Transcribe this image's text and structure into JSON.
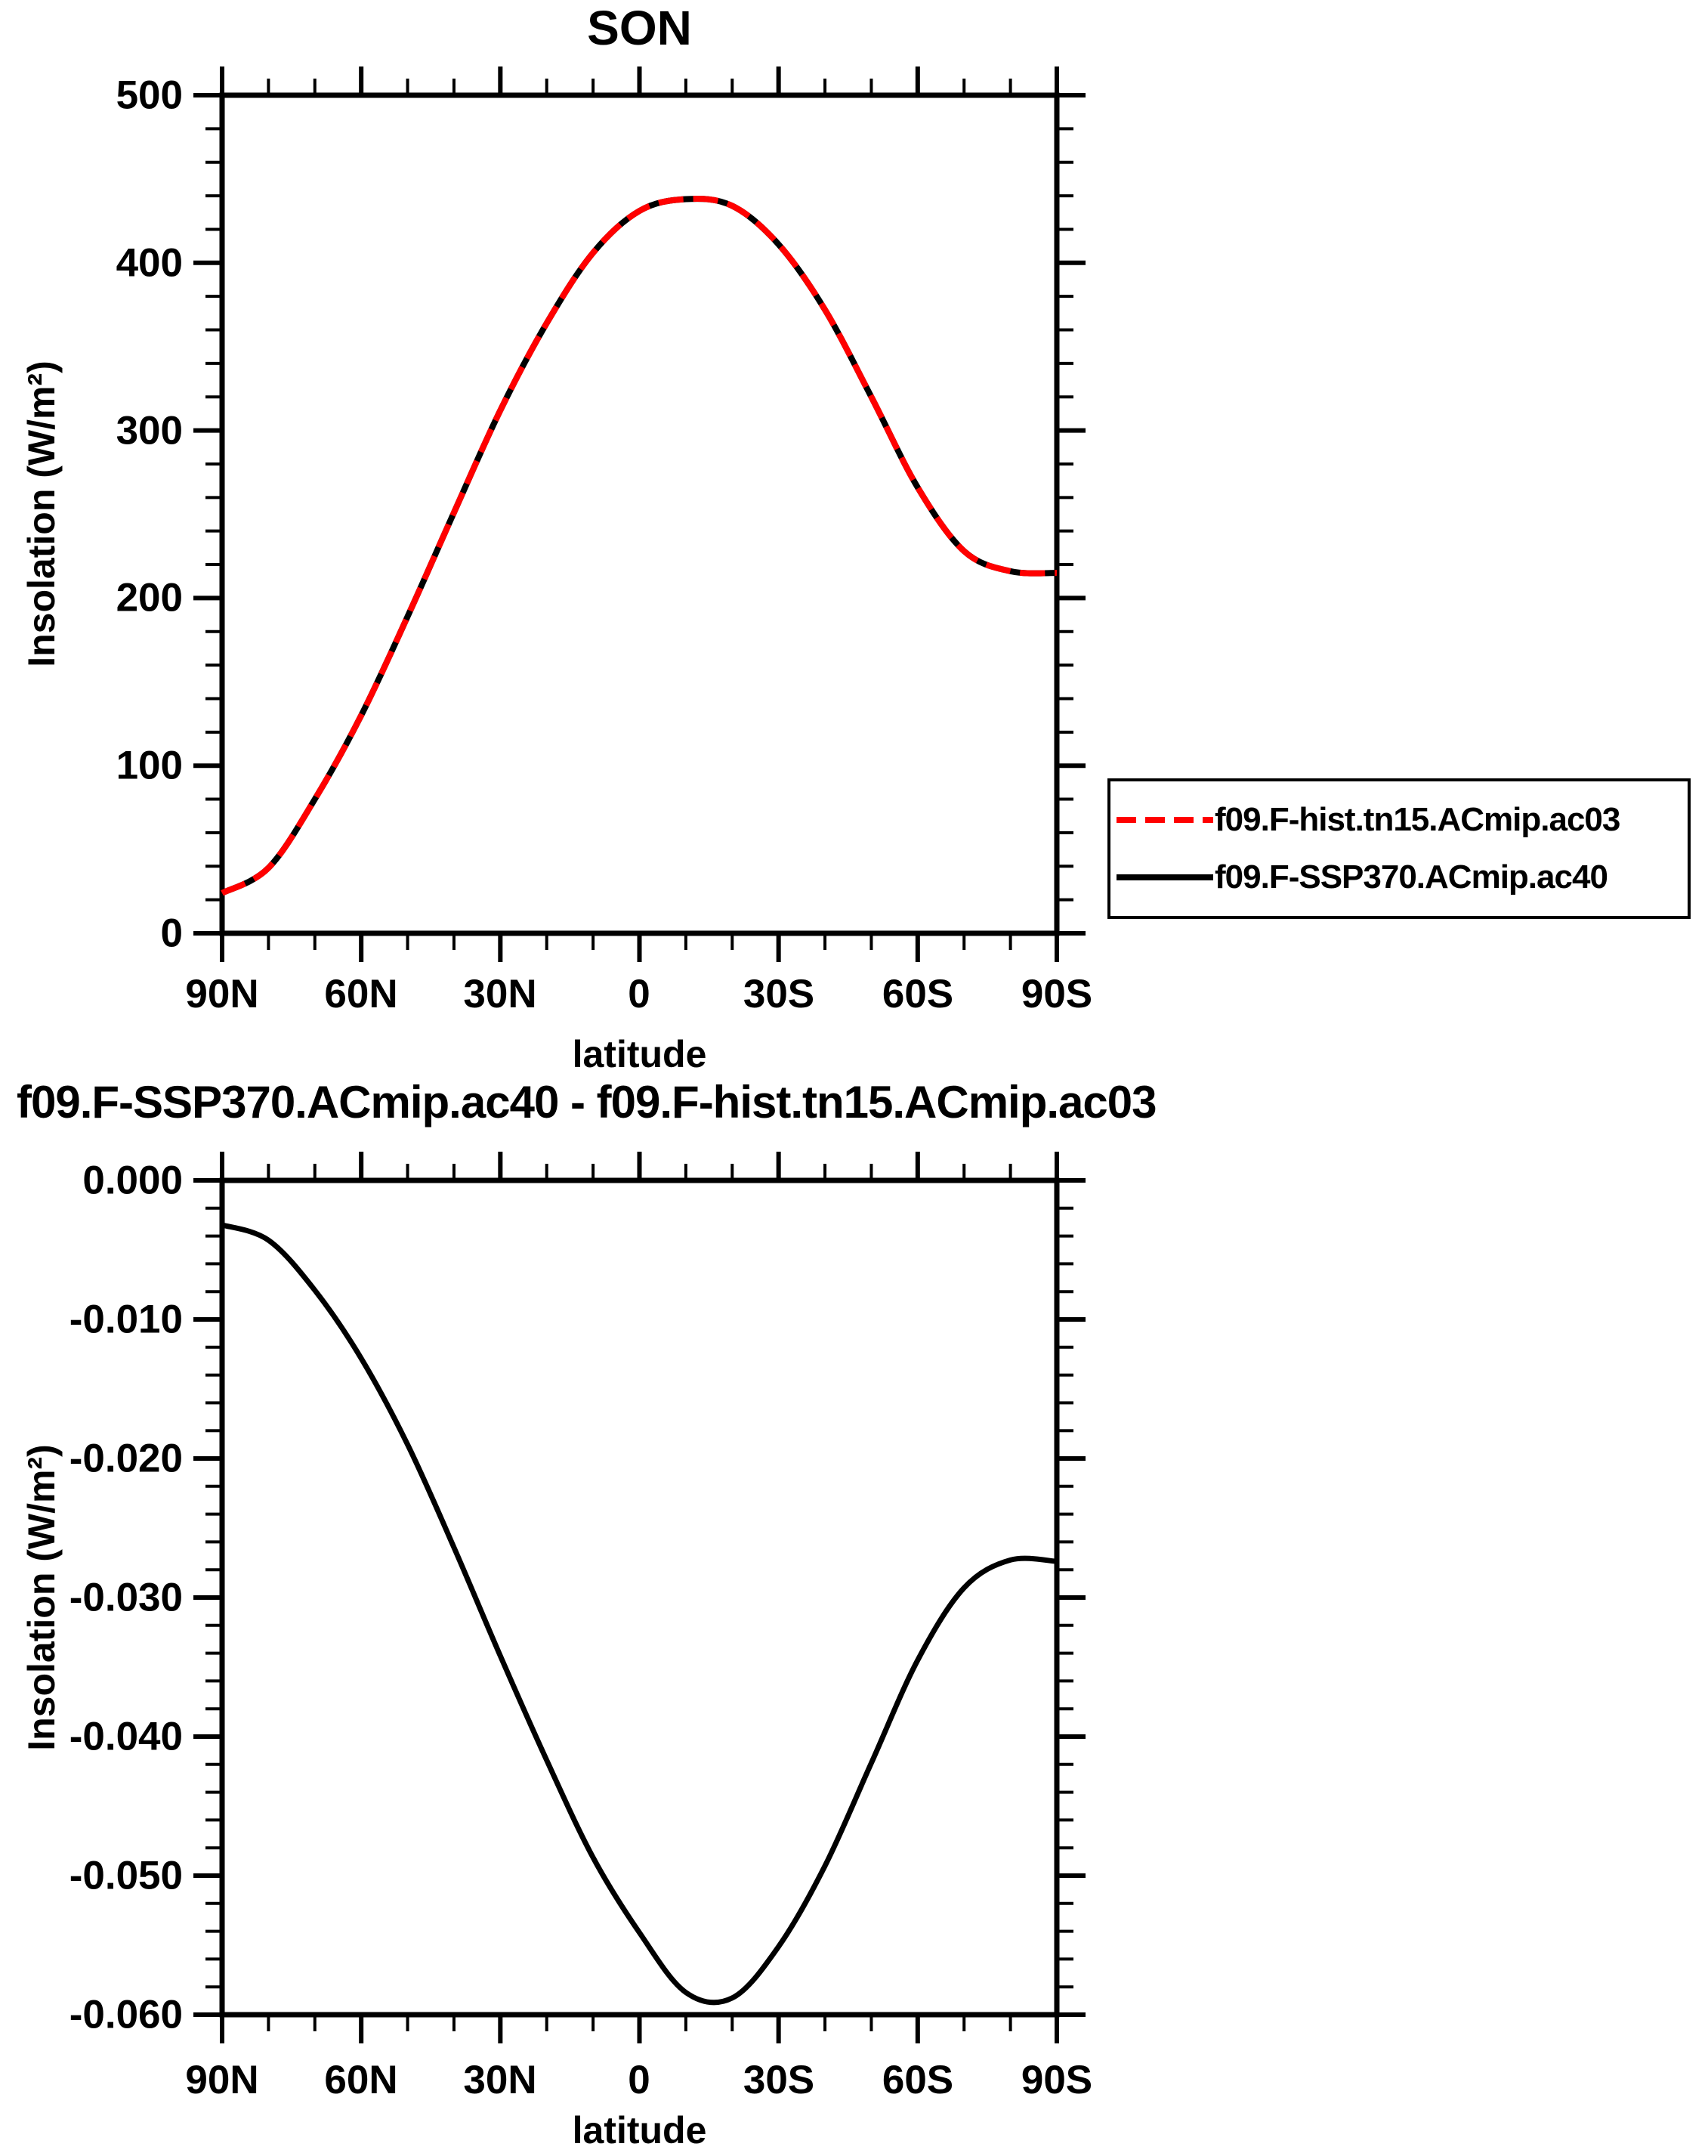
{
  "page": {
    "background": "#ffffff",
    "accent_red": "#ff0000",
    "ink": "#000000"
  },
  "chart_data": [
    {
      "type": "line",
      "title": "SON",
      "xlabel": "latitude",
      "ylabel": "Insolation (W/m²)",
      "x_axis": {
        "tick_labels": [
          "90N",
          "60N",
          "30N",
          "0",
          "30S",
          "60S",
          "90S"
        ],
        "major_values": [
          90,
          60,
          30,
          0,
          -30,
          -60,
          -90
        ],
        "minor_step": 10,
        "range": [
          90,
          -90
        ]
      },
      "y_axis": {
        "tick_labels": [
          "500",
          "400",
          "300",
          "200",
          "100",
          "0"
        ],
        "major_values": [
          500,
          400,
          300,
          200,
          100,
          0
        ],
        "minor_step": 20,
        "range": [
          0,
          500
        ]
      },
      "x": [
        90,
        80,
        70,
        60,
        50,
        40,
        30,
        20,
        10,
        0,
        -10,
        -20,
        -30,
        -40,
        -50,
        -60,
        -70,
        -80,
        -90
      ],
      "series": [
        {
          "name": "f09.F-hist.tn15.ACmip.ac03",
          "color": "#ff0000",
          "line_style": "dashed",
          "line_width": 8,
          "values": [
            24,
            39,
            80,
            130,
            189,
            251,
            312,
            364,
            406,
            431,
            438,
            434,
            411,
            372,
            320,
            266,
            228,
            216,
            215
          ]
        },
        {
          "name": "f09.F-SSP370.ACmip.ac40",
          "color": "#000000",
          "line_style": "solid",
          "line_width": 8,
          "values": [
            24,
            39,
            80,
            130,
            189,
            251,
            312,
            364,
            406,
            431,
            438,
            434,
            411,
            372,
            320,
            266,
            228,
            216,
            215
          ]
        }
      ],
      "legend": {
        "position": "right-below-plot",
        "entries": [
          {
            "label": "f09.F-hist.tn15.ACmip.ac03",
            "color": "#ff0000",
            "line_style": "dashed"
          },
          {
            "label": "f09.F-SSP370.ACmip.ac40",
            "color": "#000000",
            "line_style": "solid"
          }
        ]
      }
    },
    {
      "type": "line",
      "title": "f09.F-SSP370.ACmip.ac40 - f09.F-hist.tn15.ACmip.ac03",
      "xlabel": "latitude",
      "ylabel": "Insolation (W/m²)",
      "x_axis": {
        "tick_labels": [
          "90N",
          "60N",
          "30N",
          "0",
          "30S",
          "60S",
          "90S"
        ],
        "major_values": [
          90,
          60,
          30,
          0,
          -30,
          -60,
          -90
        ],
        "minor_step": 10,
        "range": [
          90,
          -90
        ]
      },
      "y_axis": {
        "tick_labels": [
          "0.000",
          "-0.010",
          "-0.020",
          "-0.030",
          "-0.040",
          "-0.050",
          "-0.060"
        ],
        "major_values": [
          0,
          -0.01,
          -0.02,
          -0.03,
          -0.04,
          -0.05,
          -0.06
        ],
        "minor_step": 0.002,
        "range": [
          -0.06,
          0
        ]
      },
      "x": [
        90,
        80,
        70,
        60,
        50,
        40,
        30,
        20,
        10,
        0,
        -10,
        -20,
        -30,
        -40,
        -50,
        -60,
        -70,
        -80,
        -90
      ],
      "series": [
        {
          "name": "f09.F-SSP370.ACmip.ac40 - f09.F-hist.tn15.ACmip.ac03",
          "color": "#000000",
          "line_style": "solid",
          "line_width": 7,
          "values": [
            -0.0032,
            -0.0043,
            -0.0079,
            -0.0128,
            -0.019,
            -0.0264,
            -0.0342,
            -0.0417,
            -0.0487,
            -0.0541,
            -0.0584,
            -0.0588,
            -0.0551,
            -0.0493,
            -0.0419,
            -0.0345,
            -0.0293,
            -0.0273,
            -0.0274
          ]
        }
      ]
    }
  ]
}
